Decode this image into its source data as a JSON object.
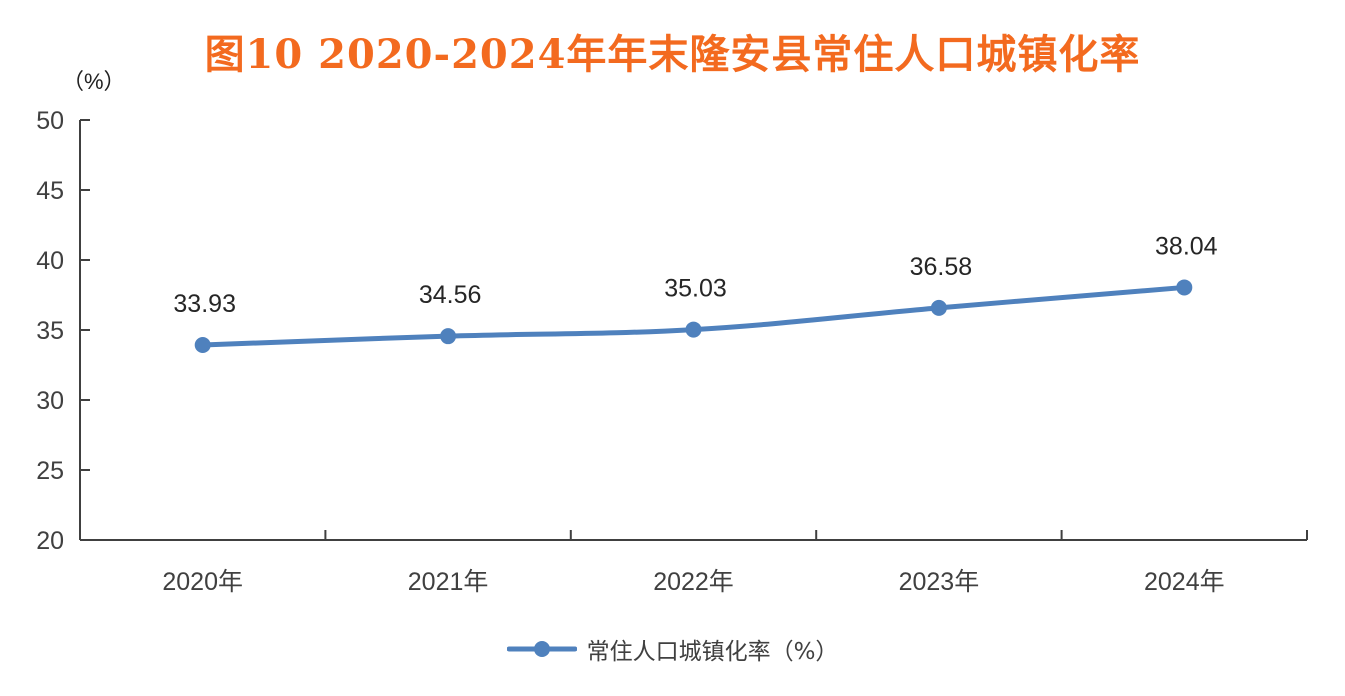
{
  "chart_data": {
    "type": "line",
    "title": "图10 2020-2024年年末隆安县常住人口城镇化率",
    "ylabel": "（%）",
    "xlabel": "",
    "categories": [
      "2020年",
      "2021年",
      "2022年",
      "2023年",
      "2024年"
    ],
    "series": [
      {
        "name": "常住人口城镇化率（%）",
        "values": [
          33.93,
          34.56,
          35.03,
          36.58,
          38.04
        ],
        "labels": [
          "33.93",
          "34.56",
          "35.03",
          "36.58",
          "38.04"
        ]
      }
    ],
    "ylim": [
      20,
      50
    ],
    "yticks": [
      20,
      25,
      30,
      35,
      40,
      45,
      50
    ],
    "grid": false,
    "legend": "bottom",
    "colors": {
      "line": "#4f81bd",
      "title": "#f36a1f",
      "axis": "#404040"
    }
  }
}
